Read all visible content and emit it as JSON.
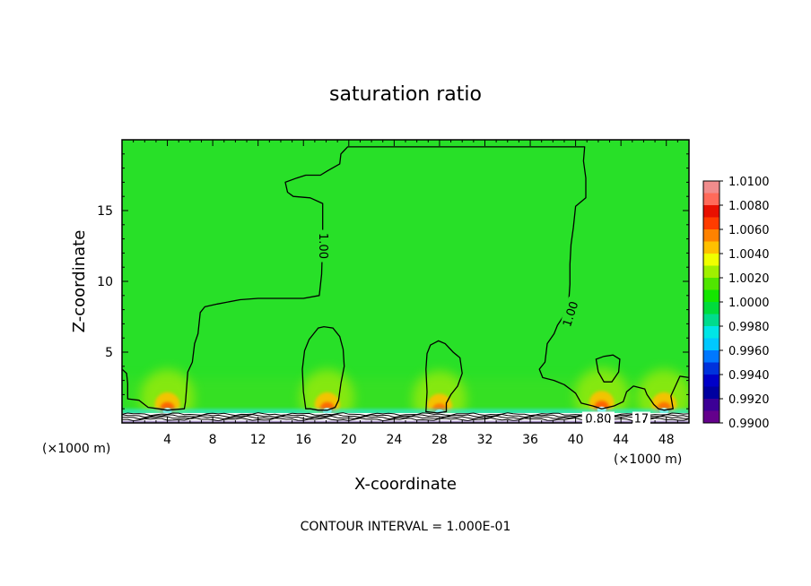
{
  "chart_data": {
    "type": "heatmap",
    "title": "saturation ratio",
    "xlabel": "X-coordinate",
    "ylabel": "Z-coordinate",
    "x_unit": "(×1000 m)",
    "xlim": [
      0,
      50
    ],
    "ylim": [
      0,
      20
    ],
    "xticks": [
      4,
      8,
      12,
      16,
      20,
      24,
      28,
      32,
      36,
      40,
      44,
      48
    ],
    "yticks": [
      5,
      10,
      15
    ],
    "grid": false,
    "colorbar": {
      "position": "right",
      "labels": [
        "1.0100",
        "1.0080",
        "1.0060",
        "1.0040",
        "1.0020",
        "1.0000",
        "0.9980",
        "0.9960",
        "0.9940",
        "0.9920",
        "0.9900"
      ],
      "colors": [
        "#f08c8c",
        "#ff6a5a",
        "#e81000",
        "#ff3c00",
        "#ff8200",
        "#ffc000",
        "#f0ff00",
        "#a0f000",
        "#50e600",
        "#14e600",
        "#00dc3c",
        "#00dc8c",
        "#00e6e6",
        "#00c8ff",
        "#0078ff",
        "#0032dc",
        "#0000c8",
        "#0000a0",
        "#3c0096",
        "#64008c"
      ]
    },
    "background_color": "#28e028",
    "contour_interval_text": "CONTOUR INTERVAL = 1.000E-01",
    "contour_labels": [
      {
        "text": "1.00",
        "x": 17.8,
        "z": 12.5,
        "angle": 90
      },
      {
        "text": "1.00",
        "x": 39.5,
        "z": 7.7,
        "angle": -72
      },
      {
        "text": "0.80",
        "x": 42.0,
        "z": 0.35,
        "angle": 0
      },
      {
        "text": "17",
        "x": 45.8,
        "z": 0.35,
        "angle": 0
      }
    ],
    "warm_spots": [
      {
        "x": 4.0,
        "z": 0.9,
        "peak": 1.008
      },
      {
        "x": 18.1,
        "z": 0.9,
        "peak": 1.007
      },
      {
        "x": 28.0,
        "z": 0.8,
        "peak": 1.004
      },
      {
        "x": 42.3,
        "z": 1.0,
        "peak": 1.008
      },
      {
        "x": 47.8,
        "z": 0.9,
        "peak": 1.005
      }
    ],
    "contour_1_00": {
      "main": [
        [
          0,
          3.8
        ],
        [
          0.4,
          3.5
        ],
        [
          0.5,
          2.8
        ],
        [
          0.5,
          1.7
        ],
        [
          1.5,
          1.6
        ],
        [
          2.3,
          1.1
        ],
        [
          3.2,
          1.0
        ],
        [
          4.0,
          0.9
        ],
        [
          5.5,
          1.0
        ],
        [
          5.6,
          1.5
        ],
        [
          5.8,
          3.6
        ],
        [
          6.2,
          4.3
        ],
        [
          6.4,
          5.6
        ],
        [
          6.7,
          6.3
        ],
        [
          6.9,
          7.8
        ],
        [
          7.3,
          8.2
        ],
        [
          8.4,
          8.4
        ],
        [
          10.4,
          8.7
        ],
        [
          12.0,
          8.8
        ],
        [
          14.0,
          8.8
        ],
        [
          16.0,
          8.8
        ],
        [
          17.4,
          9.0
        ],
        [
          17.6,
          10.5
        ],
        [
          17.7,
          13.0
        ],
        [
          17.7,
          15.5
        ],
        [
          16.6,
          15.9
        ],
        [
          15.1,
          16.0
        ],
        [
          14.6,
          16.3
        ],
        [
          14.4,
          17.0
        ],
        [
          15.4,
          17.3
        ],
        [
          16.2,
          17.5
        ],
        [
          17.5,
          17.5
        ],
        [
          18.1,
          17.8
        ],
        [
          19.2,
          18.3
        ],
        [
          19.3,
          19.0
        ],
        [
          19.9,
          19.5
        ],
        [
          20.4,
          19.5
        ],
        [
          21.0,
          19.5
        ],
        [
          22.0,
          19.5
        ],
        [
          23.0,
          19.5
        ],
        [
          24.0,
          19.5
        ],
        [
          25.0,
          19.5
        ],
        [
          26.0,
          19.5
        ],
        [
          27.0,
          19.5
        ],
        [
          28.0,
          19.5
        ],
        [
          29.0,
          19.5
        ],
        [
          30.0,
          19.5
        ],
        [
          31.0,
          19.5
        ],
        [
          32.0,
          19.5
        ],
        [
          33.0,
          19.5
        ],
        [
          34.0,
          19.5
        ],
        [
          35.0,
          19.5
        ],
        [
          36.0,
          19.5
        ],
        [
          37.0,
          19.5
        ],
        [
          38.0,
          19.5
        ],
        [
          39.0,
          19.5
        ],
        [
          40.0,
          19.5
        ],
        [
          40.8,
          19.5
        ],
        [
          40.7,
          18.5
        ],
        [
          40.9,
          17.3
        ],
        [
          40.9,
          15.9
        ],
        [
          40.0,
          15.3
        ],
        [
          39.8,
          13.8
        ],
        [
          39.6,
          12.6
        ],
        [
          39.5,
          11.2
        ],
        [
          39.5,
          9.8
        ],
        [
          39.4,
          8.6
        ],
        [
          38.9,
          7.5
        ],
        [
          38.4,
          6.9
        ],
        [
          38.1,
          6.3
        ],
        [
          37.5,
          5.6
        ],
        [
          37.3,
          4.3
        ],
        [
          36.8,
          3.8
        ],
        [
          37.1,
          3.2
        ],
        [
          38.1,
          3.0
        ],
        [
          39.0,
          2.7
        ],
        [
          40.0,
          2.1
        ],
        [
          40.5,
          1.4
        ],
        [
          41.5,
          1.2
        ],
        [
          42.3,
          1.0
        ],
        [
          43.4,
          1.2
        ],
        [
          44.2,
          1.5
        ],
        [
          44.5,
          2.2
        ],
        [
          45.1,
          2.6
        ],
        [
          46.1,
          2.4
        ],
        [
          46.3,
          2.0
        ],
        [
          46.9,
          1.3
        ],
        [
          47.3,
          1.0
        ],
        [
          47.8,
          0.9
        ],
        [
          48.6,
          1.0
        ],
        [
          48.4,
          1.9
        ],
        [
          49.2,
          3.3
        ],
        [
          50,
          3.2
        ]
      ],
      "bubble_18": [
        [
          16.2,
          1.0
        ],
        [
          16.0,
          2.2
        ],
        [
          15.9,
          3.8
        ],
        [
          16.1,
          5.1
        ],
        [
          16.5,
          5.9
        ],
        [
          16.9,
          6.3
        ],
        [
          17.3,
          6.7
        ],
        [
          17.8,
          6.8
        ],
        [
          18.6,
          6.7
        ],
        [
          19.2,
          6.1
        ],
        [
          19.5,
          5.2
        ],
        [
          19.6,
          4.0
        ],
        [
          19.3,
          2.8
        ],
        [
          19.1,
          1.6
        ],
        [
          18.8,
          1.1
        ],
        [
          18.1,
          0.9
        ],
        [
          17.3,
          0.9
        ],
        [
          16.6,
          1.0
        ],
        [
          16.2,
          1.0
        ]
      ],
      "bubble_28": [
        [
          26.8,
          0.8
        ],
        [
          26.9,
          2.2
        ],
        [
          26.8,
          3.8
        ],
        [
          26.9,
          4.9
        ],
        [
          27.2,
          5.5
        ],
        [
          27.9,
          5.8
        ],
        [
          28.5,
          5.6
        ],
        [
          29.2,
          5.0
        ],
        [
          29.8,
          4.6
        ],
        [
          30.0,
          3.5
        ],
        [
          29.6,
          2.6
        ],
        [
          29.0,
          2.0
        ],
        [
          28.6,
          1.4
        ],
        [
          28.6,
          0.8
        ],
        [
          27.8,
          0.7
        ],
        [
          26.8,
          0.8
        ]
      ],
      "bubble_43": [
        [
          41.8,
          4.5
        ],
        [
          42.0,
          3.6
        ],
        [
          42.5,
          2.9
        ],
        [
          43.2,
          2.9
        ],
        [
          43.8,
          3.6
        ],
        [
          43.9,
          4.5
        ],
        [
          43.3,
          4.8
        ],
        [
          42.5,
          4.7
        ],
        [
          41.8,
          4.5
        ]
      ]
    }
  }
}
